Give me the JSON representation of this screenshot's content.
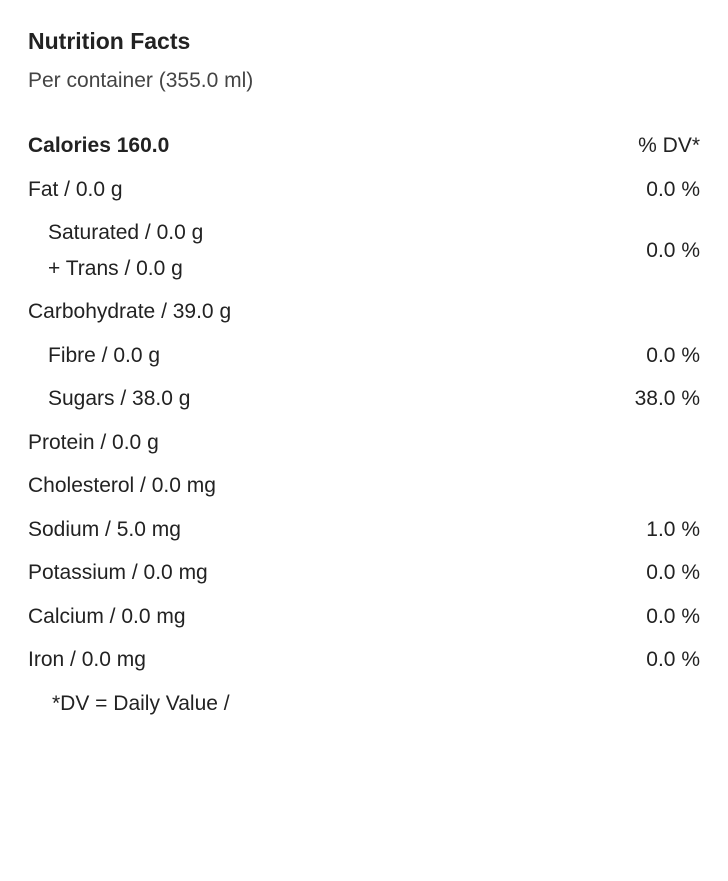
{
  "header": {
    "title": "Nutrition Facts",
    "subtitle": "Per container (355.0 ml)"
  },
  "calories": {
    "label": "Calories 160.0",
    "dv_header": "% DV*"
  },
  "rows": {
    "fat": {
      "label": "Fat / 0.0 g",
      "dv": "0.0 %"
    },
    "saturated": {
      "label": "Saturated / 0.0 g"
    },
    "trans": {
      "label": "+ Trans / 0.0 g"
    },
    "sat_trans_dv": "0.0 %",
    "carbohydrate": {
      "label": "Carbohydrate / 39.0 g"
    },
    "fibre": {
      "label": "Fibre / 0.0 g",
      "dv": "0.0 %"
    },
    "sugars": {
      "label": "Sugars / 38.0 g",
      "dv": "38.0 %"
    },
    "protein": {
      "label": "Protein / 0.0 g"
    },
    "cholesterol": {
      "label": "Cholesterol / 0.0 mg"
    },
    "sodium": {
      "label": "Sodium / 5.0 mg",
      "dv": "1.0 %"
    },
    "potassium": {
      "label": "Potassium / 0.0 mg",
      "dv": "0.0 %"
    },
    "calcium": {
      "label": "Calcium / 0.0 mg",
      "dv": "0.0 %"
    },
    "iron": {
      "label": "Iron / 0.0 mg",
      "dv": "0.0 %"
    }
  },
  "footnote": "*DV = Daily Value /"
}
